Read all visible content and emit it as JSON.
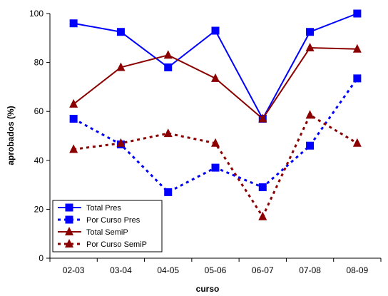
{
  "chart_data": {
    "type": "line",
    "title": "",
    "xlabel": "curso",
    "ylabel": "aprobados (%)",
    "ylim": [
      0,
      100
    ],
    "yticks": [
      0,
      20,
      40,
      60,
      80,
      100
    ],
    "categories": [
      "02-03",
      "03-04",
      "04-05",
      "05-06",
      "06-07",
      "07-08",
      "08-09"
    ],
    "grid": false,
    "legend_position": "bottom-left",
    "series": [
      {
        "name": "Total Pres",
        "color": "#0000FF",
        "line": "solid",
        "marker": "square",
        "values": [
          96,
          92.5,
          78,
          93,
          57,
          92.5,
          100
        ]
      },
      {
        "name": "Por Curso Pres",
        "color": "#0000FF",
        "line": "dashed",
        "marker": "square",
        "values": [
          57,
          46.5,
          27,
          37,
          29,
          46,
          73.5
        ]
      },
      {
        "name": "Total SemiP",
        "color": "#8B0000",
        "line": "solid",
        "marker": "triangle",
        "values": [
          63,
          78,
          83,
          73.5,
          57,
          86,
          85.5
        ]
      },
      {
        "name": "Por Curso SemiP",
        "color": "#8B0000",
        "line": "dashed",
        "marker": "triangle",
        "values": [
          44.5,
          47,
          51,
          47,
          17,
          58.5,
          47
        ]
      }
    ]
  }
}
